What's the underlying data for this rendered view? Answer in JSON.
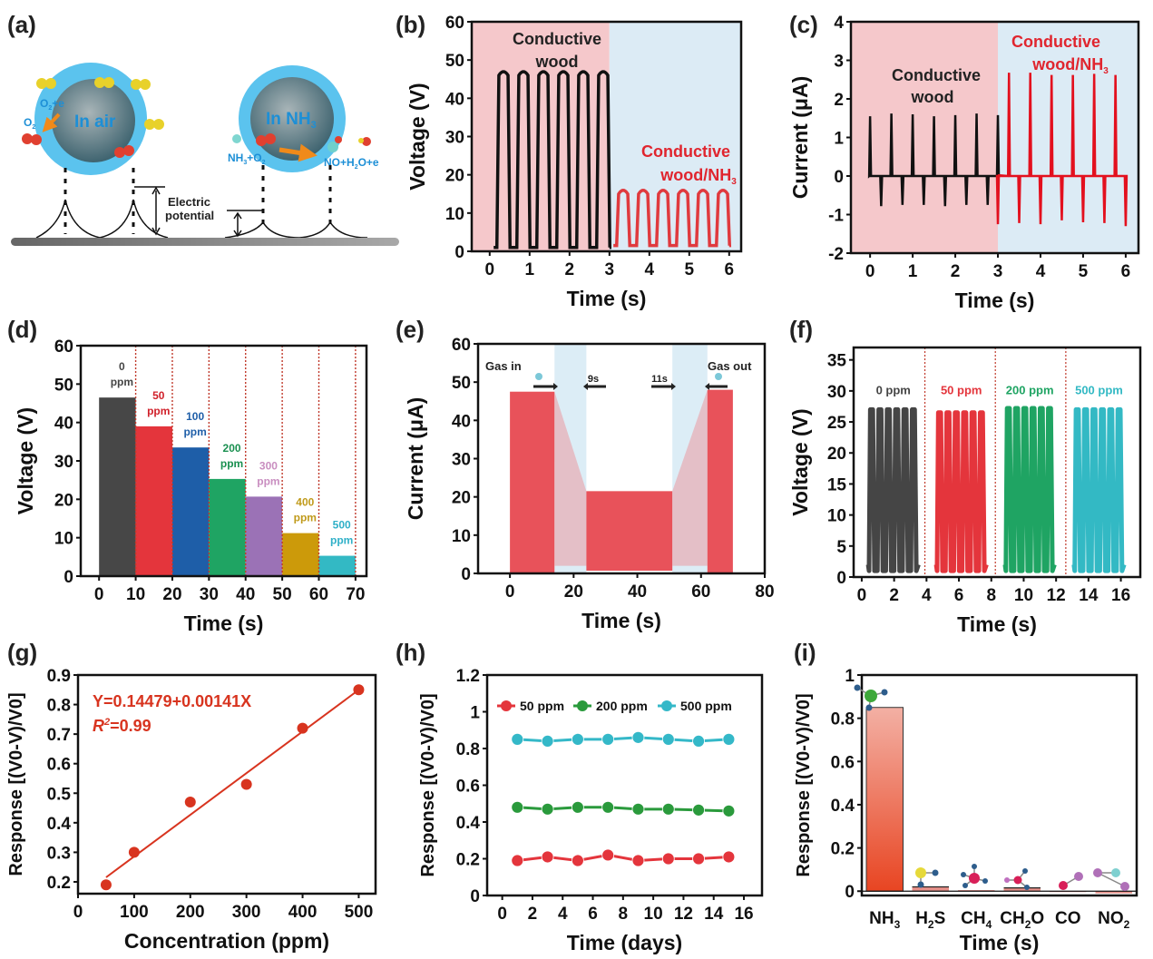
{
  "panel_labels": [
    "(a)",
    "(b)",
    "(c)",
    "(d)",
    "(e)",
    "(f)",
    "(g)",
    "(h)",
    "(i)"
  ],
  "schematic": {
    "left_sphere_label": "In air",
    "right_sphere_label": "In NH",
    "right_sphere_sub": "3",
    "reaction_left_1": "O",
    "reaction_left_1_sub": "2",
    "reaction_left_1_rest": "+e",
    "reaction_left_2": "O",
    "reaction_left_2_sub": "2",
    "reaction_right_1": "NH",
    "reaction_right_1_sub": "3",
    "reaction_right_1_rest": "+O",
    "reaction_right_1_sub2": "2",
    "reaction_right_2": "NO+H",
    "reaction_right_2_sub": "2",
    "reaction_right_2_rest": "O+e",
    "electric_potential_line1": "Electric",
    "electric_potential_line2": "potential"
  },
  "chart_data": [
    {
      "id": "b",
      "type": "line",
      "xlabel": "Time (s)",
      "ylabel": "Voltage (V)",
      "xlim": [
        -0.45,
        6.3
      ],
      "ylim": [
        0,
        60
      ],
      "xticks": [
        0,
        1,
        2,
        3,
        4,
        5,
        6
      ],
      "yticks": [
        0,
        10,
        20,
        30,
        40,
        50,
        60
      ],
      "regions": [
        {
          "from": -0.45,
          "to": 3,
          "color": "#f5c8cb"
        },
        {
          "from": 3,
          "to": 6.3,
          "color": "#dcebf5"
        }
      ],
      "series": [
        {
          "name": "Conductive wood",
          "color": "#111111",
          "period": 0.5,
          "start": 0.1,
          "end": 3.0,
          "peak": 46,
          "base": 1,
          "pulses": 6
        },
        {
          "name": "Conductive wood/NH3",
          "color": "#e03a3e",
          "period": 0.5,
          "start": 3.1,
          "end": 6.0,
          "peak": 15,
          "base": 1.5,
          "pulses": 6
        }
      ],
      "annotations": [
        {
          "text": "Conductive",
          "text2": "wood",
          "color": "#222222"
        },
        {
          "text": "Conductive",
          "text2": "wood/NH",
          "sub": "3",
          "color": "#e0252e"
        }
      ]
    },
    {
      "id": "c",
      "type": "line",
      "xlabel": "Time (s)",
      "ylabel": "Current (μA)",
      "xlim": [
        -0.45,
        6.3
      ],
      "ylim": [
        -2,
        4
      ],
      "xticks": [
        0,
        1,
        2,
        3,
        4,
        5,
        6
      ],
      "yticks": [
        -2,
        -1,
        0,
        1,
        2,
        3,
        4
      ],
      "regions": [
        {
          "from": -0.45,
          "to": 3,
          "color": "#f5c8cb"
        },
        {
          "from": 3,
          "to": 6.3,
          "color": "#dcebf5"
        }
      ],
      "series": [
        {
          "name": "Conductive wood",
          "color": "#111111",
          "pos_peaks": [
            1.55,
            1.62,
            1.6,
            1.55,
            1.58,
            1.62,
            1.58
          ],
          "neg_peaks": [
            -0.78,
            -0.75,
            -0.75,
            -0.78,
            -0.75,
            -0.75
          ],
          "start": 0.0,
          "end": 3.0
        },
        {
          "name": "Conductive wood/NH3",
          "color": "#e3101e",
          "pos_peaks": [
            2.68,
            2.68,
            2.62,
            2.62,
            2.65,
            2.62
          ],
          "neg_peaks": [
            -1.25,
            -1.22,
            -1.25,
            -1.15,
            -1.2,
            -1.22,
            -1.3
          ],
          "start": 3.0,
          "end": 6.0
        }
      ],
      "annotations": [
        {
          "text": "Conductive",
          "text2": "wood",
          "color": "#222222"
        },
        {
          "text": "Conductive",
          "text2": "wood/NH",
          "sub": "3",
          "color": "#e0252e"
        }
      ]
    },
    {
      "id": "d",
      "type": "bar",
      "xlabel": "Time (s)",
      "ylabel": "Voltage (V)",
      "xlim": [
        -5,
        73
      ],
      "ylim": [
        0,
        60
      ],
      "xticks": [
        0,
        10,
        20,
        30,
        40,
        50,
        60,
        70
      ],
      "yticks": [
        0,
        10,
        20,
        30,
        40,
        50,
        60
      ],
      "separators": [
        10,
        20,
        30,
        40,
        50,
        60,
        70
      ],
      "bars": [
        {
          "from": 0,
          "to": 10,
          "value": 46.5,
          "label1": "0",
          "label2": "ppm",
          "color": "#474747",
          "text_color": "#444444"
        },
        {
          "from": 10,
          "to": 20,
          "value": 39,
          "label1": "50",
          "label2": "ppm",
          "color": "#e4353c",
          "text_color": "#d0202a"
        },
        {
          "from": 20,
          "to": 30,
          "value": 33.5,
          "label1": "100",
          "label2": "ppm",
          "color": "#1e5ea8",
          "text_color": "#1e5ea8"
        },
        {
          "from": 30,
          "to": 40,
          "value": 25.3,
          "label1": "200",
          "label2": "ppm",
          "color": "#1fa463",
          "text_color": "#1a9050"
        },
        {
          "from": 40,
          "to": 50,
          "value": 20.7,
          "label1": "300",
          "label2": "ppm",
          "color": "#9b72b6",
          "text_color": "#c98ec0"
        },
        {
          "from": 50,
          "to": 60,
          "value": 11.2,
          "label1": "400",
          "label2": "ppm",
          "color": "#cc9a0a",
          "text_color": "#c09a1a"
        },
        {
          "from": 60,
          "to": 70,
          "value": 5.3,
          "label1": "500",
          "label2": "ppm",
          "color": "#33b9c4",
          "text_color": "#30b0c8"
        }
      ]
    },
    {
      "id": "e",
      "type": "area",
      "xlabel": "Time (s)",
      "ylabel": "Current (μA)",
      "xlim": [
        -10,
        80
      ],
      "ylim": [
        0,
        60
      ],
      "xticks": [
        0,
        20,
        40,
        60,
        80
      ],
      "yticks": [
        0,
        10,
        20,
        30,
        40,
        50,
        60
      ],
      "shaded_regions": [
        [
          14,
          24
        ],
        [
          51,
          62
        ]
      ],
      "segments": [
        {
          "from": 0,
          "to": 14,
          "value": 47.5
        },
        {
          "from": 14,
          "to": 24,
          "value_start": 47.5,
          "value_end": 21.5,
          "transition": true
        },
        {
          "from": 24,
          "to": 51,
          "value": 21.5
        },
        {
          "from": 51,
          "to": 62,
          "value_start": 21.5,
          "value_end": 48,
          "transition": true
        },
        {
          "from": 62,
          "to": 70,
          "value": 48
        }
      ],
      "annotations": [
        {
          "text": "Gas in"
        },
        {
          "text": "9s"
        },
        {
          "text": "11s"
        },
        {
          "text": "Gas out"
        }
      ]
    },
    {
      "id": "f",
      "type": "line",
      "xlabel": "Time (s)",
      "ylabel": "Voltage (V)",
      "xlim": [
        -0.5,
        17.2
      ],
      "ylim": [
        0,
        37
      ],
      "xticks": [
        0,
        2,
        4,
        6,
        8,
        10,
        12,
        14,
        16
      ],
      "yticks": [
        0,
        5,
        10,
        15,
        20,
        25,
        30,
        35
      ],
      "separators": [
        3.9,
        8.25,
        12.6
      ],
      "series": [
        {
          "name": "0 ppm",
          "color": "#454545",
          "start": 0.4,
          "end": 3.5,
          "peak": 27,
          "pulses": 6
        },
        {
          "name": "50 ppm",
          "color": "#e4353c",
          "start": 4.6,
          "end": 7.7,
          "peak": 26.5,
          "pulses": 6
        },
        {
          "name": "200 ppm",
          "color": "#1fa463",
          "start": 8.85,
          "end": 11.9,
          "peak": 27.2,
          "pulses": 6
        },
        {
          "name": "500 ppm",
          "color": "#33b9c4",
          "start": 13.1,
          "end": 16.2,
          "peak": 27,
          "pulses": 6
        }
      ]
    },
    {
      "id": "g",
      "type": "scatter",
      "xlabel": "Concentration (ppm)",
      "ylabel": "Response [(V0-V)/V0]",
      "xlim": [
        0,
        530
      ],
      "ylim": [
        0.16,
        0.9
      ],
      "xticks": [
        0,
        100,
        200,
        300,
        400,
        500
      ],
      "yticks": [
        0.2,
        0.3,
        0.4,
        0.5,
        0.6,
        0.7,
        0.8,
        0.9
      ],
      "x": [
        50,
        100,
        200,
        300,
        400,
        500
      ],
      "y": [
        0.19,
        0.3,
        0.47,
        0.53,
        0.72,
        0.85
      ],
      "fit": {
        "intercept": 0.14479,
        "slope": 0.00141,
        "from": 50,
        "to": 500
      },
      "equation": "Y=0.14479+0.00141X",
      "r2_label": "R",
      "r2_value": "=0.99",
      "color": "#d8341f"
    },
    {
      "id": "h",
      "type": "line",
      "xlabel": "Time (days)",
      "ylabel": "Response [(V0-V)/V0]",
      "xlim": [
        -1,
        17.2
      ],
      "ylim": [
        0,
        1.2
      ],
      "xticks": [
        0,
        2,
        4,
        6,
        8,
        10,
        12,
        14,
        16
      ],
      "yticks": [
        0.0,
        0.2,
        0.4,
        0.6,
        0.8,
        1.0,
        1.2
      ],
      "x": [
        1,
        3,
        5,
        7,
        9,
        11,
        13,
        15
      ],
      "legend_position": "top",
      "series": [
        {
          "name": "50 ppm",
          "color": "#e4353c",
          "values": [
            0.19,
            0.21,
            0.19,
            0.22,
            0.19,
            0.2,
            0.2,
            0.21
          ]
        },
        {
          "name": "200 ppm",
          "color": "#2a9a3c",
          "values": [
            0.48,
            0.47,
            0.48,
            0.48,
            0.47,
            0.47,
            0.465,
            0.46
          ]
        },
        {
          "name": "500 ppm",
          "color": "#34b8c8",
          "values": [
            0.85,
            0.84,
            0.85,
            0.85,
            0.86,
            0.85,
            0.84,
            0.85
          ]
        }
      ]
    },
    {
      "id": "i",
      "type": "bar",
      "xlabel": "Time (s)",
      "ylabel": "Response [(V0-V)/V0]",
      "ylim": [
        -0.02,
        1.0
      ],
      "yticks": [
        0.0,
        0.2,
        0.4,
        0.6,
        0.8,
        1.0
      ],
      "categories": [
        {
          "main": "NH",
          "sub": "3",
          "tail": ""
        },
        {
          "main": "H",
          "sub": "2",
          "tail": "S"
        },
        {
          "main": "CH",
          "sub": "4",
          "tail": ""
        },
        {
          "main": "CH",
          "sub": "2",
          "tail": "O"
        },
        {
          "main": "CO",
          "sub": "",
          "tail": ""
        },
        {
          "main": "NO",
          "sub": "2",
          "tail": ""
        }
      ],
      "values": [
        0.85,
        0.02,
        0.005,
        0.015,
        0.0,
        -0.01
      ],
      "bar_color_top": "#f3b0a4",
      "bar_color_bottom": "#e84522"
    }
  ]
}
